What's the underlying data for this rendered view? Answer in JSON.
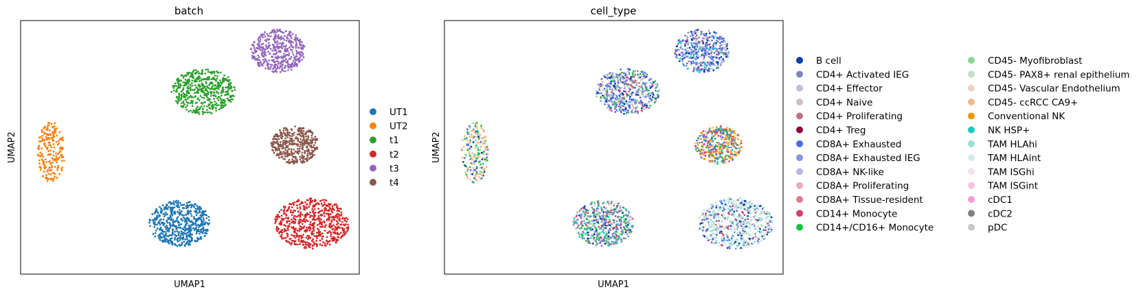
{
  "chart_data": [
    {
      "type": "scatter",
      "title": "batch",
      "xlabel": "UMAP1",
      "ylabel": "UMAP2",
      "grid": false,
      "ticks": "none",
      "legend_placement": "right",
      "legend": [
        {
          "name": "UT1",
          "color": "#1f77b4"
        },
        {
          "name": "UT2",
          "color": "#ff7f0e"
        },
        {
          "name": "t1",
          "color": "#2ca02c"
        },
        {
          "name": "t2",
          "color": "#d62728"
        },
        {
          "name": "t3",
          "color": "#9467bd"
        },
        {
          "name": "t4",
          "color": "#8c564b"
        }
      ],
      "clusters": [
        {
          "group": "UT2",
          "color": "#ff7f0e",
          "cx": 0.09,
          "cy": 0.52,
          "rx": 0.04,
          "ry": 0.12,
          "n": 220
        },
        {
          "group": "t1",
          "color": "#2ca02c",
          "cx": 0.54,
          "cy": 0.28,
          "rx": 0.095,
          "ry": 0.09,
          "n": 520
        },
        {
          "group": "t3",
          "color": "#9467bd",
          "cx": 0.76,
          "cy": 0.12,
          "rx": 0.08,
          "ry": 0.085,
          "n": 450
        },
        {
          "group": "t4",
          "color": "#8c564b",
          "cx": 0.81,
          "cy": 0.49,
          "rx": 0.07,
          "ry": 0.075,
          "n": 400
        },
        {
          "group": "UT1",
          "color": "#1f77b4",
          "cx": 0.47,
          "cy": 0.8,
          "rx": 0.09,
          "ry": 0.09,
          "n": 560
        },
        {
          "group": "t2",
          "color": "#d62728",
          "cx": 0.86,
          "cy": 0.8,
          "rx": 0.11,
          "ry": 0.1,
          "n": 620
        }
      ]
    },
    {
      "type": "scatter",
      "title": "cell_type",
      "xlabel": "UMAP1",
      "ylabel": "UMAP2",
      "grid": false,
      "ticks": "none",
      "legend_placement": "right",
      "legend": [
        {
          "name": "B cell",
          "color": "#023fa5"
        },
        {
          "name": "CD4+ Activated IEG",
          "color": "#7d87b9"
        },
        {
          "name": "CD4+ Effector",
          "color": "#bec1d4"
        },
        {
          "name": "CD4+ Naive",
          "color": "#d6bcc0"
        },
        {
          "name": "CD4+ Proliferating",
          "color": "#bb7784"
        },
        {
          "name": "CD4+ Treg",
          "color": "#8e063b"
        },
        {
          "name": "CD8A+ Exhausted",
          "color": "#4a6fe3"
        },
        {
          "name": "CD8A+ Exhausted IEG",
          "color": "#8595e1"
        },
        {
          "name": "CD8A+ NK-like",
          "color": "#b5bbe3"
        },
        {
          "name": "CD8A+ Proliferating",
          "color": "#e6afb9"
        },
        {
          "name": "CD8A+ Tissue-resident",
          "color": "#e07b91"
        },
        {
          "name": "CD14+ Monocyte",
          "color": "#d33f6a"
        },
        {
          "name": "CD14+/CD16+ Monocyte",
          "color": "#11c638"
        },
        {
          "name": "CD45- Myofibroblast",
          "color": "#8dd593"
        },
        {
          "name": "CD45- PAX8+ renal epithelium",
          "color": "#c6dec7"
        },
        {
          "name": "CD45- Vascular Endothelium",
          "color": "#ead3c6"
        },
        {
          "name": "CD45- ccRCC CA9+",
          "color": "#f0b98d"
        },
        {
          "name": "Conventional NK",
          "color": "#ef9708"
        },
        {
          "name": "NK HSP+",
          "color": "#0fcfc0"
        },
        {
          "name": "TAM HLAhi",
          "color": "#9cded6"
        },
        {
          "name": "TAM HLAint",
          "color": "#d5eae7"
        },
        {
          "name": "TAM ISGhi",
          "color": "#f3e1eb"
        },
        {
          "name": "TAM ISGint",
          "color": "#f6c4e1"
        },
        {
          "name": "cDC1",
          "color": "#f79cd4"
        },
        {
          "name": "cDC2",
          "color": "#7f7f7f"
        },
        {
          "name": "pDC",
          "color": "#c7c7c7"
        }
      ],
      "clusters": [
        {
          "group": "UT2",
          "cx": 0.09,
          "cy": 0.52,
          "rx": 0.04,
          "ry": 0.12,
          "n": 220,
          "mix": [
            [
              "CD45- ccRCC CA9+",
              5
            ],
            [
              "CD14+/CD16+ Monocyte",
              2
            ],
            [
              "CD8A+ Exhausted",
              2
            ],
            [
              "B cell",
              1
            ],
            [
              "CD45- Myofibroblast",
              1
            ]
          ]
        },
        {
          "group": "t1",
          "cx": 0.54,
          "cy": 0.28,
          "rx": 0.095,
          "ry": 0.09,
          "n": 520,
          "mix": [
            [
              "B cell",
              2
            ],
            [
              "CD4+ Activated IEG",
              2
            ],
            [
              "CD8A+ Exhausted",
              3
            ],
            [
              "CD8A+ Exhausted IEG",
              2
            ],
            [
              "CD4+ Effector",
              2
            ],
            [
              "CD45- Myofibroblast",
              1
            ],
            [
              "CD14+ Monocyte",
              1
            ],
            [
              "CD45- ccRCC CA9+",
              1
            ],
            [
              "CD14+/CD16+ Monocyte",
              1
            ]
          ]
        },
        {
          "group": "t3",
          "cx": 0.76,
          "cy": 0.12,
          "rx": 0.08,
          "ry": 0.085,
          "n": 450,
          "mix": [
            [
              "B cell",
              2
            ],
            [
              "CD8A+ Exhausted",
              3
            ],
            [
              "CD8A+ Exhausted IEG",
              2
            ],
            [
              "CD4+ Effector",
              2
            ],
            [
              "CD4+ Activated IEG",
              2
            ],
            [
              "NK HSP+",
              1
            ],
            [
              "CD14+ Monocyte",
              1
            ],
            [
              "CD8A+ NK-like",
              1
            ]
          ]
        },
        {
          "group": "t4",
          "cx": 0.81,
          "cy": 0.49,
          "rx": 0.07,
          "ry": 0.075,
          "n": 400,
          "mix": [
            [
              "Conventional NK",
              4
            ],
            [
              "CD8A+ Exhausted",
              2
            ],
            [
              "CD14+ Monocyte",
              2
            ],
            [
              "CD45- ccRCC CA9+",
              2
            ],
            [
              "NK HSP+",
              1
            ],
            [
              "CD14+/CD16+ Monocyte",
              1
            ],
            [
              "CD4+ Activated IEG",
              1
            ]
          ]
        },
        {
          "group": "UT1",
          "cx": 0.47,
          "cy": 0.8,
          "rx": 0.09,
          "ry": 0.09,
          "n": 560,
          "mix": [
            [
              "CD8A+ Exhausted IEG",
              2
            ],
            [
              "CD45- Myofibroblast",
              2
            ],
            [
              "CD4+ Activated IEG",
              2
            ],
            [
              "CD14+/CD16+ Monocyte",
              1
            ],
            [
              "cDC2",
              1
            ],
            [
              "B cell",
              1
            ],
            [
              "CD45- Vascular Endothelium",
              1
            ],
            [
              "NK HSP+",
              1
            ],
            [
              "CD14+ Monocyte",
              1
            ]
          ]
        },
        {
          "group": "t2",
          "cx": 0.86,
          "cy": 0.8,
          "rx": 0.11,
          "ry": 0.1,
          "n": 620,
          "mix": [
            [
              "TAM HLAhi",
              4
            ],
            [
              "TAM HLAint",
              3
            ],
            [
              "CD45- PAX8+ renal epithelium",
              2
            ],
            [
              "CD8A+ Exhausted",
              2
            ],
            [
              "B cell",
              1
            ],
            [
              "CD14+ Monocyte",
              1
            ],
            [
              "CD8A+ Exhausted IEG",
              1
            ]
          ]
        }
      ]
    }
  ]
}
